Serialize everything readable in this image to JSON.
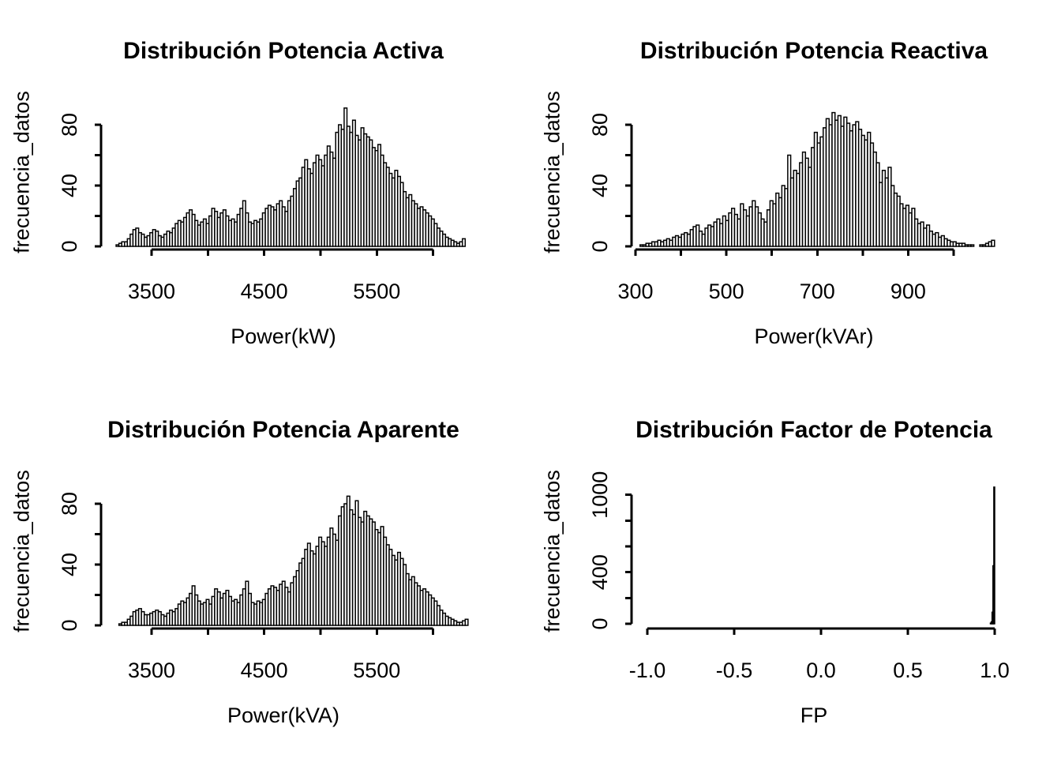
{
  "page": {
    "background": "#ffffff",
    "text_color": "#000000"
  },
  "chart_data": [
    {
      "type": "bar",
      "subtype": "histogram",
      "title": "Distribución Potencia Activa",
      "xlabel": "Power(kW)",
      "ylabel": "frecuencia_datos",
      "bar_fill": "#ffffff",
      "bar_stroke": "#000000",
      "axis_color": "#000000",
      "x_axis": {
        "ticks": [
          3500,
          4000,
          4500,
          5000,
          5500,
          6000
        ],
        "tick_labels": [
          "3500",
          "",
          "4500",
          "",
          "5500",
          ""
        ]
      },
      "y_axis": {
        "ticks": [
          0,
          20,
          40,
          60,
          80
        ],
        "tick_labels": [
          "0",
          "",
          "40",
          "",
          "80"
        ]
      },
      "xlim": [
        3050,
        6290
      ],
      "ylim": [
        0,
        95
      ],
      "hist": {
        "x_start": 3185,
        "bin_width": 25,
        "heights": [
          1,
          2,
          3,
          3,
          5,
          8,
          11,
          12,
          9,
          8,
          6,
          7,
          9,
          11,
          10,
          7,
          6,
          8,
          10,
          9,
          12,
          15,
          17,
          16,
          19,
          22,
          24,
          21,
          17,
          14,
          16,
          18,
          15,
          20,
          25,
          23,
          19,
          22,
          24,
          20,
          17,
          18,
          16,
          21,
          25,
          30,
          22,
          16,
          15,
          17,
          16,
          18,
          22,
          25,
          27,
          26,
          24,
          28,
          30,
          26,
          23,
          30,
          33,
          38,
          43,
          45,
          52,
          57,
          51,
          48,
          55,
          60,
          57,
          53,
          60,
          66,
          62,
          58,
          75,
          80,
          77,
          91,
          79,
          75,
          83,
          73,
          70,
          78,
          74,
          72,
          70,
          65,
          63,
          67,
          60,
          55,
          52,
          48,
          45,
          50,
          46,
          42,
          36,
          32,
          34,
          30,
          28,
          25,
          26,
          24,
          22,
          20,
          18,
          15,
          12,
          10,
          8,
          6,
          5,
          4,
          3,
          2,
          3,
          5
        ]
      }
    },
    {
      "type": "bar",
      "subtype": "histogram",
      "title": "Distribución Potencia Reactiva",
      "xlabel": "Power(kVAr)",
      "ylabel": "frecuencia_datos",
      "bar_fill": "#ffffff",
      "bar_stroke": "#000000",
      "axis_color": "#000000",
      "x_axis": {
        "ticks": [
          300,
          400,
          500,
          600,
          700,
          800,
          900,
          1000
        ],
        "tick_labels": [
          "300",
          "",
          "500",
          "",
          "700",
          "",
          "900",
          ""
        ]
      },
      "y_axis": {
        "ticks": [
          0,
          20,
          40,
          60,
          80
        ],
        "tick_labels": [
          "0",
          "",
          "40",
          "",
          "80"
        ]
      },
      "xlim": [
        290,
        1095
      ],
      "ylim": [
        0,
        92
      ],
      "hist": {
        "x_start": 310,
        "bin_width": 6.5,
        "heights": [
          1,
          1,
          2,
          2,
          3,
          3,
          4,
          3,
          4,
          5,
          4,
          6,
          7,
          6,
          8,
          9,
          8,
          11,
          13,
          14,
          10,
          8,
          12,
          14,
          13,
          16,
          18,
          15,
          20,
          17,
          22,
          25,
          21,
          18,
          28,
          24,
          20,
          26,
          30,
          26,
          22,
          18,
          16,
          24,
          30,
          28,
          35,
          32,
          40,
          38,
          60,
          45,
          50,
          48,
          55,
          62,
          58,
          52,
          65,
          75,
          68,
          72,
          78,
          84,
          80,
          88,
          83,
          86,
          79,
          85,
          81,
          76,
          80,
          82,
          77,
          73,
          70,
          75,
          68,
          62,
          55,
          42,
          50,
          45,
          52,
          40,
          35,
          33,
          28,
          25,
          27,
          22,
          25,
          18,
          15,
          16,
          12,
          14,
          10,
          8,
          9,
          6,
          7,
          5,
          4,
          3,
          3,
          2,
          2,
          2,
          1,
          1,
          1,
          0,
          0,
          1,
          1,
          2,
          3,
          4
        ]
      }
    },
    {
      "type": "bar",
      "subtype": "histogram",
      "title": "Distribución Potencia Aparente",
      "xlabel": "Power(kVA)",
      "ylabel": "frecuencia_datos",
      "bar_fill": "#ffffff",
      "bar_stroke": "#000000",
      "axis_color": "#000000",
      "x_axis": {
        "ticks": [
          3500,
          4000,
          4500,
          5000,
          5500,
          6000
        ],
        "tick_labels": [
          "3500",
          "",
          "4500",
          "",
          "5500",
          ""
        ]
      },
      "y_axis": {
        "ticks": [
          0,
          20,
          40,
          60,
          80
        ],
        "tick_labels": [
          "0",
          "",
          "40",
          "",
          "80"
        ]
      },
      "xlim": [
        3080,
        6320
      ],
      "ylim": [
        0,
        90
      ],
      "hist": {
        "x_start": 3210,
        "bin_width": 25,
        "heights": [
          1,
          2,
          2,
          4,
          6,
          9,
          10,
          11,
          9,
          7,
          7,
          8,
          9,
          10,
          9,
          7,
          6,
          8,
          10,
          9,
          11,
          14,
          16,
          15,
          18,
          21,
          26,
          20,
          16,
          14,
          15,
          17,
          14,
          19,
          24,
          22,
          18,
          21,
          23,
          19,
          16,
          17,
          15,
          20,
          24,
          29,
          21,
          15,
          14,
          16,
          15,
          17,
          21,
          24,
          26,
          25,
          23,
          27,
          29,
          25,
          22,
          28,
          32,
          36,
          41,
          44,
          50,
          54,
          49,
          47,
          52,
          58,
          55,
          52,
          58,
          64,
          60,
          56,
          72,
          78,
          80,
          85,
          76,
          73,
          82,
          71,
          68,
          75,
          72,
          70,
          68,
          63,
          61,
          65,
          58,
          53,
          50,
          46,
          43,
          48,
          44,
          40,
          34,
          30,
          32,
          28,
          26,
          23,
          24,
          22,
          20,
          18,
          16,
          13,
          10,
          8,
          6,
          5,
          4,
          3,
          2,
          2,
          3,
          4
        ]
      }
    },
    {
      "type": "bar",
      "subtype": "histogram",
      "title": "Distribución Factor de Potencia",
      "xlabel": "FP",
      "ylabel": "frecuencia_datos",
      "bar_fill": "#ffffff",
      "bar_stroke": "#000000",
      "axis_color": "#000000",
      "x_axis": {
        "ticks": [
          -1.0,
          -0.5,
          0.0,
          0.5,
          1.0
        ],
        "tick_labels": [
          "-1.0",
          "-0.5",
          "0.0",
          "0.5",
          "1.0"
        ]
      },
      "y_axis": {
        "ticks": [
          0,
          200,
          400,
          600,
          800,
          1000
        ],
        "tick_labels": [
          "0",
          "",
          "400",
          "",
          "",
          "1000"
        ]
      },
      "xlim": [
        -1.16,
        1.0
      ],
      "ylim": [
        0,
        1100
      ],
      "hist": {
        "x_start": 0.975,
        "bin_width": 0.005,
        "heights": [
          5,
          15,
          90,
          450,
          1060
        ]
      }
    }
  ]
}
